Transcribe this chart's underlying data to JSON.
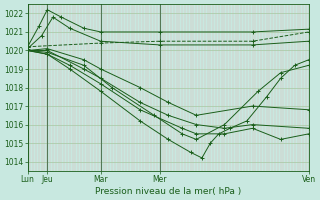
{
  "title": "",
  "xlabel": "Pression niveau de la mer( hPa )",
  "ylim": [
    1013.5,
    1022.5
  ],
  "xlim": [
    0,
    100
  ],
  "yticks": [
    1014,
    1015,
    1016,
    1017,
    1018,
    1019,
    1020,
    1021,
    1022
  ],
  "xtick_positions": [
    0,
    7,
    26,
    47,
    100
  ],
  "xtick_labels": [
    "Lun",
    "Jeu",
    "Mar",
    "Mer",
    "Ven"
  ],
  "bg_color": "#c8e8e0",
  "line_color": "#1a5e1a",
  "grid_color_v": "#e0aaaa",
  "grid_color_h": "#a0cca0",
  "vline_color": "#557755"
}
